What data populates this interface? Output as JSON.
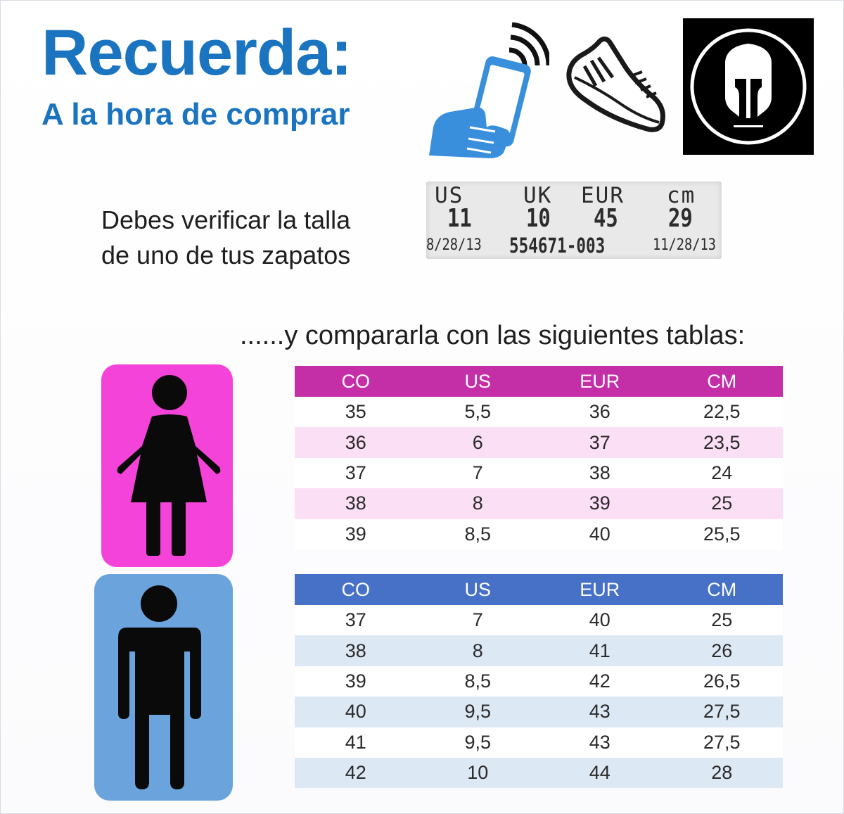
{
  "header": {
    "title": "Recuerda:",
    "subtitle": "A la hora de comprar"
  },
  "icons": {
    "phone": "phone-icon",
    "shoe": "shoe-icon",
    "logo": "spartan-helmet-logo",
    "woman": "woman-icon",
    "man": "man-icon"
  },
  "colors": {
    "title_blue": "#1a74bf",
    "women_header": "#c42ea6",
    "women_stripe": "#fbdff5",
    "women_icon_bg": "#f443d8",
    "men_header": "#4671c6",
    "men_stripe": "#dde8f5",
    "men_icon_bg": "#6ba4dd"
  },
  "verify": {
    "line1": "Debes verificar la talla",
    "line2": "de uno de tus zapatos"
  },
  "shoe_tag": {
    "h_us": "US",
    "h_uk": "UK",
    "h_eur": "EUR",
    "h_cm": "cm",
    "v_us": "11",
    "v_uk": "10",
    "v_eur": "45",
    "v_cm": "29",
    "date_left": "8/28/13",
    "code": "554671-003",
    "date_right": "11/28/13"
  },
  "compare_text": "......y compararla con las siguientes tablas:",
  "women_table": {
    "headers": [
      "CO",
      "US",
      "EUR",
      "CM"
    ],
    "rows": [
      [
        "35",
        "5,5",
        "36",
        "22,5"
      ],
      [
        "36",
        "6",
        "37",
        "23,5"
      ],
      [
        "37",
        "7",
        "38",
        "24"
      ],
      [
        "38",
        "8",
        "39",
        "25"
      ],
      [
        "39",
        "8,5",
        "40",
        "25,5"
      ]
    ]
  },
  "men_table": {
    "headers": [
      "CO",
      "US",
      "EUR",
      "CM"
    ],
    "rows": [
      [
        "37",
        "7",
        "40",
        "25"
      ],
      [
        "38",
        "8",
        "41",
        "26"
      ],
      [
        "39",
        "8,5",
        "42",
        "26,5"
      ],
      [
        "40",
        "9,5",
        "43",
        "27,5"
      ],
      [
        "41",
        "9,5",
        "43",
        "27,5"
      ],
      [
        "42",
        "10",
        "44",
        "28"
      ]
    ]
  }
}
